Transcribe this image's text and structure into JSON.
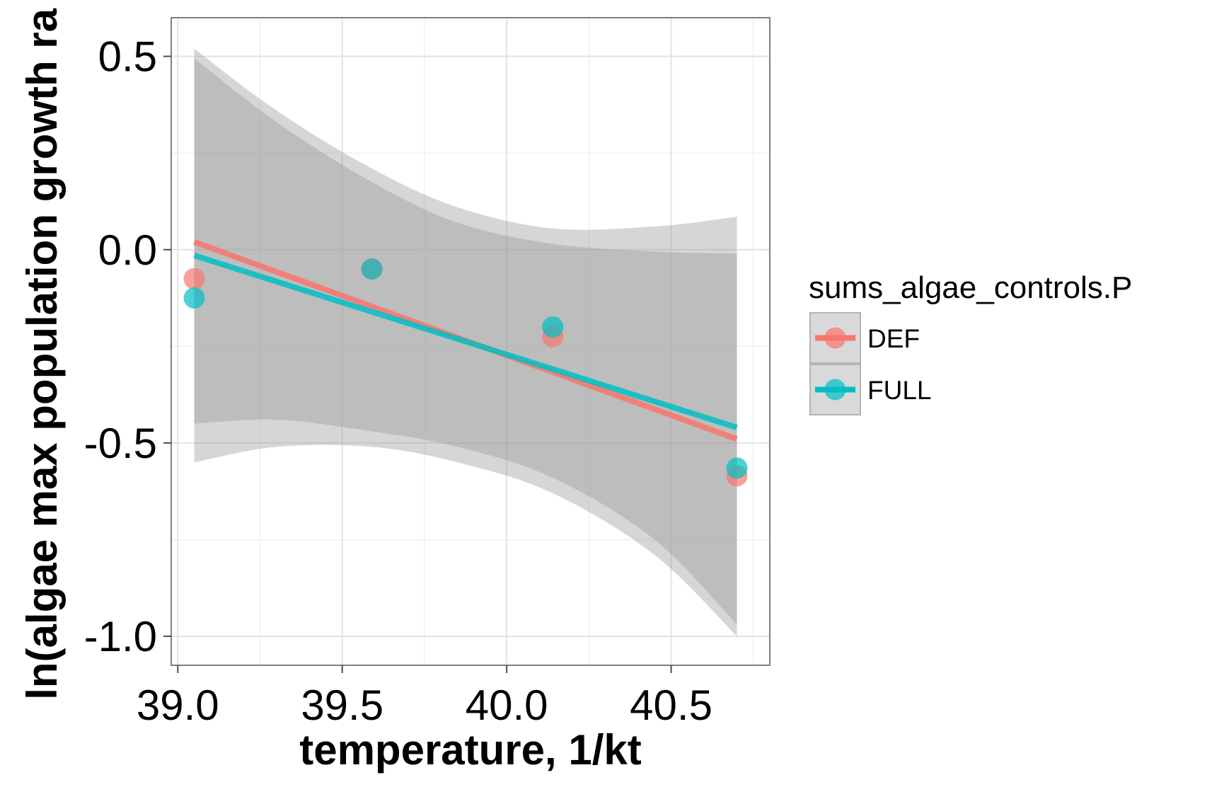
{
  "chart_data": {
    "type": "scatter",
    "xlabel": "temperature, 1/kt",
    "ylabel": "ln(algae max population growth ra",
    "xlim": [
      38.98,
      40.8
    ],
    "ylim": [
      -1.075,
      0.6
    ],
    "x_ticks": [
      39.0,
      39.5,
      40.0,
      40.5
    ],
    "x_tick_labels": [
      "39.0",
      "39.5",
      "40.0",
      "40.5"
    ],
    "y_ticks": [
      -1.0,
      -0.5,
      0.0,
      0.5
    ],
    "y_tick_labels": [
      "-1.0",
      "-0.5",
      "0.0",
      "0.5"
    ],
    "grid": true,
    "legend": {
      "title": "sums_algae_controls.P",
      "position": "right"
    },
    "series": [
      {
        "name": "DEF",
        "color": "#F8766D",
        "points": [
          {
            "x": 39.05,
            "y": -0.075
          },
          {
            "x": 39.59,
            "y": -0.05
          },
          {
            "x": 40.14,
            "y": -0.225
          },
          {
            "x": 40.7,
            "y": -0.585
          }
        ],
        "fit": [
          [
            39.05,
            0.02
          ],
          [
            40.7,
            -0.49
          ]
        ],
        "ci_upper": [
          [
            39.05,
            0.52
          ],
          [
            39.3,
            0.36
          ],
          [
            39.59,
            0.21
          ],
          [
            39.85,
            0.11
          ],
          [
            40.14,
            0.055
          ],
          [
            40.45,
            0.06
          ],
          [
            40.7,
            0.085
          ]
        ],
        "ci_lower": [
          [
            39.05,
            -0.55
          ],
          [
            39.3,
            -0.51
          ],
          [
            39.59,
            -0.51
          ],
          [
            39.85,
            -0.55
          ],
          [
            40.14,
            -0.63
          ],
          [
            40.45,
            -0.79
          ],
          [
            40.7,
            -1.0
          ]
        ]
      },
      {
        "name": "FULL",
        "color": "#00BFC4",
        "points": [
          {
            "x": 39.05,
            "y": -0.125
          },
          {
            "x": 39.59,
            "y": -0.05
          },
          {
            "x": 40.14,
            "y": -0.2
          },
          {
            "x": 40.7,
            "y": -0.565
          }
        ],
        "fit": [
          [
            39.05,
            -0.015
          ],
          [
            40.7,
            -0.46
          ]
        ],
        "ci_upper": [
          [
            39.05,
            0.495
          ],
          [
            39.3,
            0.33
          ],
          [
            39.59,
            0.175
          ],
          [
            39.85,
            0.07
          ],
          [
            40.14,
            0.015
          ],
          [
            40.45,
            -0.005
          ],
          [
            40.7,
            -0.01
          ]
        ],
        "ci_lower": [
          [
            39.05,
            -0.45
          ],
          [
            39.3,
            -0.44
          ],
          [
            39.59,
            -0.47
          ],
          [
            39.85,
            -0.51
          ],
          [
            40.14,
            -0.59
          ],
          [
            40.45,
            -0.75
          ],
          [
            40.7,
            -0.97
          ]
        ]
      }
    ]
  }
}
